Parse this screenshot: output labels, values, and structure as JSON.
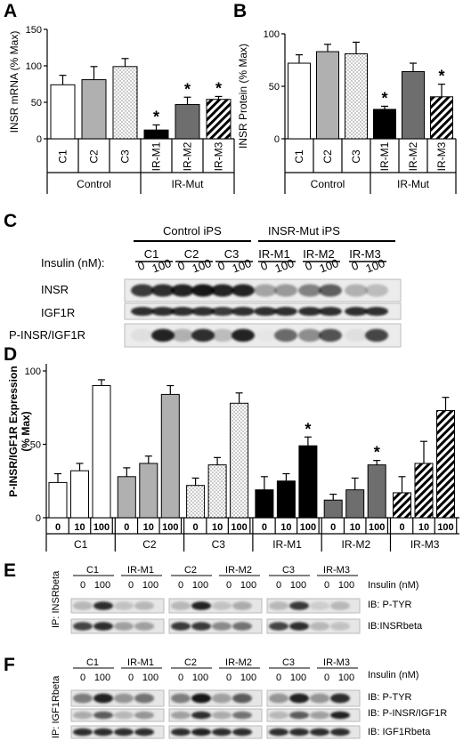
{
  "panels": {
    "A": {
      "label": "A",
      "ylabel": "INSR mRNA (% Max)",
      "yticks": [
        "0",
        "50",
        "100",
        "150"
      ]
    },
    "B": {
      "label": "B",
      "ylabel": "INSR Protein (% Max)",
      "yticks": [
        "0",
        "50",
        "100"
      ]
    },
    "C": {
      "label": "C",
      "group_headers": [
        "Control iPS",
        "INSR-Mut iPS"
      ],
      "lines": [
        "C1",
        "C2",
        "C3",
        "IR-M1",
        "IR-M2",
        "IR-M3"
      ],
      "insulin_label": "Insulin (nM):",
      "doses": [
        "0",
        "100"
      ],
      "rows": [
        "INSR",
        "IGF1R",
        "P-INSR/IGF1R"
      ]
    },
    "D": {
      "label": "D",
      "ylabel_line1": "P-INSR/IGF1R Expression",
      "ylabel_line2": "(% Max)",
      "yticks": [
        "0",
        "50",
        "100"
      ],
      "doses": [
        "0",
        "10",
        "100"
      ]
    },
    "E": {
      "label": "E",
      "ip_label": "IP: INSRbeta",
      "blocks": [
        [
          "C1",
          "IR-M1"
        ],
        [
          "C2",
          "IR-M2"
        ],
        [
          "C3",
          "IR-M3"
        ]
      ],
      "doses": [
        "0",
        "100"
      ],
      "insulin_label": "Insulin (nM)",
      "rows": [
        "IB: P-TYR",
        "IB:INSRbeta"
      ]
    },
    "F": {
      "label": "F",
      "ip_label": "IP: IGF1Rbeta",
      "blocks": [
        [
          "C1",
          "IR-M1"
        ],
        [
          "C2",
          "IR-M2"
        ],
        [
          "C3",
          "IR-M3"
        ]
      ],
      "doses": [
        "0",
        "100"
      ],
      "insulin_label": "Insulin (nM)",
      "rows": [
        "IB: P-TYR",
        "IB:  P-INSR/IGF1R",
        "IB: IGF1Rbeta"
      ]
    }
  },
  "group_labels": {
    "control": "Control",
    "mutant": "IR-Mut"
  },
  "significance_marker": "*",
  "colors": {
    "C1": "#ffffff",
    "C2": "#b0b0b0",
    "C3": "#dotted",
    "IR-M1": "#000000",
    "IR-M2": "#6e6e6e",
    "IR-M3": "#hatched"
  },
  "chart_data": [
    {
      "type": "bar",
      "panel": "A",
      "categories": [
        "C1",
        "C2",
        "C3",
        "IR-M1",
        "IR-M2",
        "IR-M3"
      ],
      "values": [
        74,
        81,
        99,
        12,
        47,
        54
      ],
      "errors": [
        13,
        18,
        11,
        7,
        10,
        4
      ],
      "significant": [
        false,
        false,
        false,
        true,
        true,
        true
      ],
      "ylabel": "INSR mRNA (% Max)",
      "ylim": [
        0,
        150
      ]
    },
    {
      "type": "bar",
      "panel": "B",
      "categories": [
        "C1",
        "C2",
        "C3",
        "IR-M1",
        "IR-M2",
        "IR-M3"
      ],
      "values": [
        72,
        83,
        81,
        28,
        64,
        40
      ],
      "errors": [
        8,
        7,
        11,
        3,
        8,
        12
      ],
      "significant": [
        false,
        false,
        false,
        true,
        false,
        true
      ],
      "ylabel": "INSR Protein (% Max)",
      "ylim": [
        0,
        100
      ]
    },
    {
      "type": "bar",
      "panel": "D",
      "groups": [
        "C1",
        "C2",
        "C3",
        "IR-M1",
        "IR-M2",
        "IR-M3"
      ],
      "doses": [
        "0",
        "10",
        "100"
      ],
      "series": [
        {
          "name": "C1",
          "values": [
            24,
            32,
            90
          ],
          "errors": [
            6,
            5,
            4
          ]
        },
        {
          "name": "C2",
          "values": [
            28,
            37,
            84
          ],
          "errors": [
            6,
            5,
            6
          ]
        },
        {
          "name": "C3",
          "values": [
            22,
            36,
            78
          ],
          "errors": [
            5,
            5,
            7
          ]
        },
        {
          "name": "IR-M1",
          "values": [
            19,
            25,
            49
          ],
          "errors": [
            9,
            5,
            6
          ]
        },
        {
          "name": "IR-M2",
          "values": [
            12,
            19,
            36
          ],
          "errors": [
            4,
            8,
            3
          ]
        },
        {
          "name": "IR-M3",
          "values": [
            17,
            37,
            73
          ],
          "errors": [
            11,
            15,
            9
          ]
        }
      ],
      "significant": [
        [
          false,
          false,
          false
        ],
        [
          false,
          false,
          false
        ],
        [
          false,
          false,
          false
        ],
        [
          false,
          false,
          true
        ],
        [
          false,
          false,
          true
        ],
        [
          false,
          false,
          false
        ]
      ],
      "ylabel": "P-INSR/IGF1R Expression (% Max)",
      "ylim": [
        0,
        100
      ]
    }
  ]
}
